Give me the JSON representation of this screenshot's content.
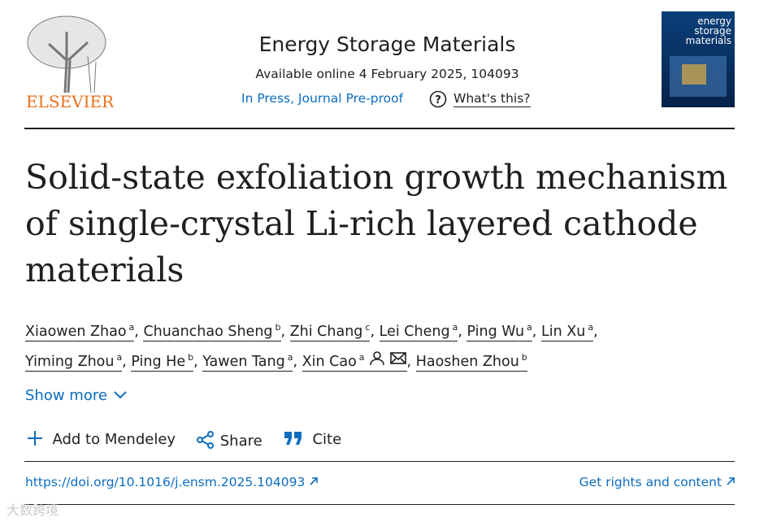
{
  "header": {
    "publisher": "ELSEVIER",
    "journal": "Energy Storage Materials",
    "availability": "Available online 4 February 2025, 104093",
    "status": "In Press, Journal Pre-proof",
    "help": "What's this?",
    "cover_title": "energy storage materials"
  },
  "article": {
    "title": "Solid-state exfoliation growth mechanism of single-crystal Li-rich layered cathode materials",
    "separator": ",",
    "authors": [
      {
        "name": "Xiaowen Zhao",
        "affiliation": "a"
      },
      {
        "name": "Chuanchao Sheng",
        "affiliation": "b"
      },
      {
        "name": "Zhi Chang",
        "affiliation": "c"
      },
      {
        "name": "Lei Cheng",
        "affiliation": "a"
      },
      {
        "name": "Ping Wu",
        "affiliation": "a"
      },
      {
        "name": "Lin Xu",
        "affiliation": "a"
      },
      {
        "name": "Yiming Zhou",
        "affiliation": "a"
      },
      {
        "name": "Ping He",
        "affiliation": "b"
      },
      {
        "name": "Yawen Tang",
        "affiliation": "a"
      },
      {
        "name": "Xin Cao",
        "affiliation": "a"
      },
      {
        "name": "Haoshen Zhou",
        "affiliation": "b"
      }
    ],
    "show_more": "Show more"
  },
  "actions": {
    "mendeley": "Add to Mendeley",
    "share": "Share",
    "cite": "Cite"
  },
  "footer": {
    "doi": "https://doi.org/10.1016/j.ensm.2025.104093",
    "rights": "Get rights and content"
  },
  "watermark": "大数跨境"
}
